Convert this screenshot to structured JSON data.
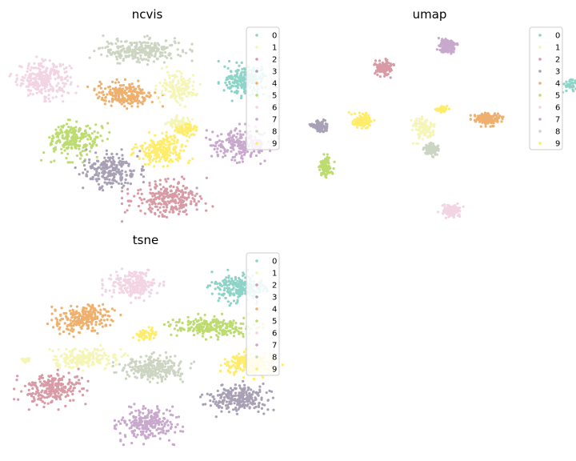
{
  "figure": {
    "palette": {
      "0": "#8dd3c7",
      "1": "#f5f5b8",
      "2": "#d89aa5",
      "3": "#a8a0b4",
      "4": "#efb06e",
      "5": "#bcdc70",
      "6": "#f2d4e2",
      "7": "#c9a8cd",
      "8": "#ccd5c2",
      "9": "#ffec6a"
    }
  },
  "chart_data": [
    {
      "type": "scatter",
      "title": "ncvis",
      "grid": false,
      "axes_visible": false,
      "legend": {
        "placement": "top-right",
        "entries": [
          "0",
          "1",
          "2",
          "3",
          "4",
          "5",
          "6",
          "7",
          "8",
          "9"
        ]
      },
      "xlim": [
        0,
        100
      ],
      "ylim": [
        0,
        100
      ],
      "clusters": [
        {
          "label": "6",
          "cx": 10,
          "cy": 74,
          "rx": 10,
          "ry": 9,
          "n": 260
        },
        {
          "label": "8",
          "cx": 47,
          "cy": 89,
          "rx": 15,
          "ry": 6,
          "n": 260
        },
        {
          "label": "4",
          "cx": 41,
          "cy": 66,
          "rx": 11,
          "ry": 6,
          "n": 230
        },
        {
          "label": "0",
          "cx": 87,
          "cy": 73,
          "rx": 8,
          "ry": 8,
          "n": 220
        },
        {
          "label": "1",
          "cx": 61,
          "cy": 70,
          "rx": 7,
          "ry": 8,
          "n": 140
        },
        {
          "label": "1",
          "cx": 62,
          "cy": 51,
          "rx": 5,
          "ry": 4,
          "n": 70
        },
        {
          "label": "9",
          "cx": 64,
          "cy": 47,
          "rx": 5,
          "ry": 3,
          "n": 60
        },
        {
          "label": "9",
          "cx": 55,
          "cy": 37,
          "rx": 9,
          "ry": 7,
          "n": 200
        },
        {
          "label": "5",
          "cx": 22,
          "cy": 42,
          "rx": 10,
          "ry": 9,
          "n": 230
        },
        {
          "label": "7",
          "cx": 85,
          "cy": 40,
          "rx": 11,
          "ry": 8,
          "n": 230
        },
        {
          "label": "3",
          "cx": 35,
          "cy": 26,
          "rx": 10,
          "ry": 9,
          "n": 230
        },
        {
          "label": "2",
          "cx": 58,
          "cy": 11,
          "rx": 14,
          "ry": 9,
          "n": 260
        }
      ]
    },
    {
      "type": "scatter",
      "title": "umap",
      "grid": false,
      "axes_visible": false,
      "legend": {
        "placement": "top-right",
        "entries": [
          "0",
          "1",
          "2",
          "3",
          "4",
          "5",
          "6",
          "7",
          "8",
          "9"
        ]
      },
      "xlim": [
        0,
        100
      ],
      "ylim": [
        0,
        100
      ],
      "clusters": [
        {
          "label": "7",
          "cx": 54,
          "cy": 91,
          "rx": 3,
          "ry": 3.5,
          "n": 130
        },
        {
          "label": "2",
          "cx": 31,
          "cy": 80,
          "rx": 3,
          "ry": 4,
          "n": 130
        },
        {
          "label": "0",
          "cx": 98,
          "cy": 71,
          "rx": 3,
          "ry": 3,
          "n": 40
        },
        {
          "label": "4",
          "cx": 68,
          "cy": 53,
          "rx": 4.5,
          "ry": 3,
          "n": 140
        },
        {
          "label": "9",
          "cx": 52,
          "cy": 58,
          "rx": 2,
          "ry": 2,
          "n": 40
        },
        {
          "label": "9",
          "cx": 23,
          "cy": 52,
          "rx": 3.5,
          "ry": 3.5,
          "n": 110
        },
        {
          "label": "3",
          "cx": 8,
          "cy": 49,
          "rx": 3,
          "ry": 3,
          "n": 90
        },
        {
          "label": "1",
          "cx": 45,
          "cy": 48,
          "rx": 4,
          "ry": 6,
          "n": 110
        },
        {
          "label": "8",
          "cx": 48,
          "cy": 37,
          "rx": 3,
          "ry": 3,
          "n": 90
        },
        {
          "label": "5",
          "cx": 10,
          "cy": 28,
          "rx": 2.5,
          "ry": 5,
          "n": 100
        },
        {
          "label": "6",
          "cx": 55,
          "cy": 5,
          "rx": 3.5,
          "ry": 3,
          "n": 130
        }
      ]
    },
    {
      "type": "scatter",
      "title": "tsne",
      "grid": false,
      "axes_visible": false,
      "legend": {
        "placement": "top-right",
        "entries": [
          "0",
          "1",
          "2",
          "3",
          "4",
          "5",
          "6",
          "7",
          "8",
          "9"
        ]
      },
      "xlim": [
        0,
        100
      ],
      "ylim": [
        0,
        100
      ],
      "clusters": [
        {
          "label": "6",
          "cx": 44,
          "cy": 84,
          "rx": 9,
          "ry": 7,
          "n": 230
        },
        {
          "label": "0",
          "cx": 85,
          "cy": 83,
          "rx": 10,
          "ry": 7,
          "n": 240
        },
        {
          "label": "4",
          "cx": 25,
          "cy": 67,
          "rx": 11,
          "ry": 7,
          "n": 230
        },
        {
          "label": "5",
          "cx": 74,
          "cy": 63,
          "rx": 15,
          "ry": 5,
          "n": 240
        },
        {
          "label": "9",
          "cx": 49,
          "cy": 59,
          "rx": 4,
          "ry": 3,
          "n": 60
        },
        {
          "label": "1",
          "cx": 26,
          "cy": 47,
          "rx": 13,
          "ry": 5,
          "n": 220
        },
        {
          "label": "1",
          "cx": 3,
          "cy": 46,
          "rx": 2,
          "ry": 1.5,
          "n": 20
        },
        {
          "label": "8",
          "cx": 52,
          "cy": 42,
          "rx": 12,
          "ry": 6,
          "n": 250
        },
        {
          "label": "9",
          "cx": 88,
          "cy": 44,
          "rx": 10,
          "ry": 6,
          "n": 220
        },
        {
          "label": "2",
          "cx": 13,
          "cy": 31,
          "rx": 11,
          "ry": 8,
          "n": 240
        },
        {
          "label": "3",
          "cx": 84,
          "cy": 26,
          "rx": 11,
          "ry": 7,
          "n": 240
        },
        {
          "label": "7",
          "cx": 50,
          "cy": 13,
          "rx": 10,
          "ry": 8,
          "n": 240
        }
      ]
    }
  ]
}
